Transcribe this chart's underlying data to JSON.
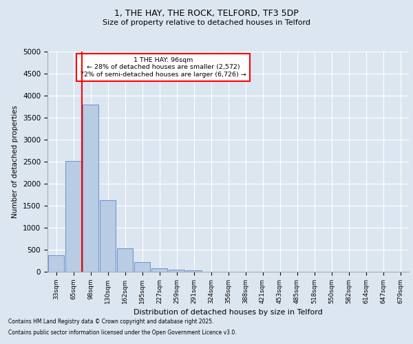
{
  "title_line1": "1, THE HAY, THE ROCK, TELFORD, TF3 5DP",
  "title_line2": "Size of property relative to detached houses in Telford",
  "xlabel": "Distribution of detached houses by size in Telford",
  "ylabel": "Number of detached properties",
  "categories": [
    "33sqm",
    "65sqm",
    "98sqm",
    "130sqm",
    "162sqm",
    "195sqm",
    "227sqm",
    "259sqm",
    "291sqm",
    "324sqm",
    "356sqm",
    "388sqm",
    "421sqm",
    "453sqm",
    "485sqm",
    "518sqm",
    "550sqm",
    "582sqm",
    "614sqm",
    "647sqm",
    "679sqm"
  ],
  "values": [
    370,
    2520,
    3800,
    1620,
    530,
    215,
    85,
    50,
    30,
    0,
    0,
    0,
    0,
    0,
    0,
    0,
    0,
    0,
    0,
    0,
    0
  ],
  "bar_color": "#b8cce4",
  "bar_edge_color": "#4472c4",
  "background_color": "#dce6f1",
  "plot_background": "#dce6f1",
  "grid_color": "#ffffff",
  "red_line_x": 1.5,
  "annotation_title": "1 THE HAY: 96sqm",
  "annotation_line2": "← 28% of detached houses are smaller (2,572)",
  "annotation_line3": "72% of semi-detached houses are larger (6,726) →",
  "ylim": [
    0,
    5000
  ],
  "yticks": [
    0,
    500,
    1000,
    1500,
    2000,
    2500,
    3000,
    3500,
    4000,
    4500,
    5000
  ],
  "footer_line1": "Contains HM Land Registry data © Crown copyright and database right 2025.",
  "footer_line2": "Contains public sector information licensed under the Open Government Licence v3.0.",
  "annotation_box_color": "#ff0000",
  "red_line_color": "#ff0000"
}
